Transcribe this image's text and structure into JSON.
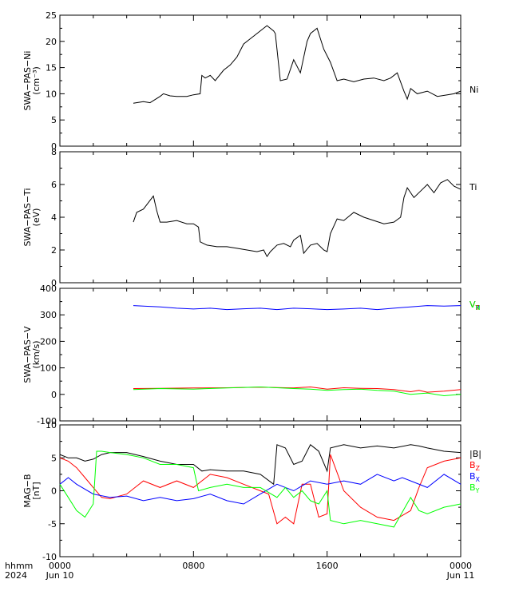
{
  "chart_data": [
    {
      "type": "line",
      "ylabel_lines": [
        "SWA−PAS−Ni",
        "(cm⁻³)"
      ],
      "ylim": [
        0,
        25
      ],
      "yticks": [
        0,
        5,
        10,
        15,
        20,
        25
      ],
      "xlim_hours": [
        0,
        24
      ],
      "series": [
        {
          "name": "Ni",
          "color": "#000000",
          "x": [
            4.4,
            5.0,
            5.4,
            6.0,
            6.2,
            6.6,
            7.0,
            7.6,
            8.0,
            8.4,
            8.5,
            8.7,
            9.0,
            9.3,
            9.8,
            10.2,
            10.6,
            11.0,
            11.4,
            11.8,
            12.2,
            12.4,
            12.8,
            12.9,
            13.2,
            13.6,
            14.0,
            14.4,
            14.8,
            15.0,
            15.4,
            15.8,
            16.2,
            16.6,
            17.0,
            17.6,
            18.2,
            18.8,
            19.4,
            19.8,
            20.2,
            20.6,
            20.8,
            21.0,
            21.4,
            22.0,
            22.6,
            23.2,
            23.6,
            24.0
          ],
          "y": [
            8.2,
            8.5,
            8.3,
            9.5,
            10.0,
            9.6,
            9.5,
            9.5,
            9.8,
            10.0,
            13.5,
            13.0,
            13.5,
            12.5,
            14.5,
            15.5,
            17.0,
            19.5,
            20.5,
            21.5,
            22.5,
            23.0,
            22.0,
            21.5,
            12.5,
            12.8,
            16.5,
            14.0,
            20.0,
            21.5,
            22.5,
            18.5,
            16.0,
            12.5,
            12.8,
            12.3,
            12.8,
            13.0,
            12.5,
            13.0,
            14.0,
            10.5,
            9.0,
            11.0,
            10.0,
            10.5,
            9.5,
            9.8,
            10.0,
            10.5
          ]
        }
      ],
      "legend": [
        {
          "label": "Ni",
          "color": "#000000"
        }
      ]
    },
    {
      "type": "line",
      "ylabel_lines": [
        "SWA−PAS−Ti",
        "(eV)"
      ],
      "ylim": [
        0,
        8
      ],
      "yticks": [
        0,
        2,
        4,
        6,
        8
      ],
      "xlim_hours": [
        0,
        24
      ],
      "series": [
        {
          "name": "Ti",
          "color": "#000000",
          "x": [
            4.4,
            4.6,
            5.0,
            5.3,
            5.6,
            5.8,
            6.0,
            6.4,
            7.0,
            7.6,
            8.0,
            8.3,
            8.4,
            8.8,
            9.4,
            10.0,
            10.6,
            11.2,
            11.8,
            12.2,
            12.4,
            12.6,
            13.0,
            13.4,
            13.8,
            14.0,
            14.4,
            14.6,
            15.0,
            15.4,
            15.8,
            16.0,
            16.2,
            16.6,
            17.0,
            17.6,
            18.2,
            18.8,
            19.4,
            20.0,
            20.4,
            20.6,
            20.8,
            21.2,
            21.6,
            22.0,
            22.4,
            22.8,
            23.2,
            23.6,
            24.0
          ],
          "y": [
            3.7,
            4.3,
            4.5,
            4.9,
            5.3,
            4.4,
            3.7,
            3.7,
            3.8,
            3.6,
            3.6,
            3.4,
            2.5,
            2.3,
            2.2,
            2.2,
            2.1,
            2.0,
            1.9,
            2.0,
            1.6,
            1.9,
            2.3,
            2.4,
            2.2,
            2.6,
            2.9,
            1.8,
            2.3,
            2.4,
            2.0,
            1.9,
            3.0,
            3.9,
            3.8,
            4.3,
            4.0,
            3.8,
            3.6,
            3.7,
            4.0,
            5.2,
            5.8,
            5.2,
            5.6,
            6.0,
            5.5,
            6.1,
            6.3,
            5.9,
            5.7
          ]
        }
      ],
      "legend": [
        {
          "label": "Ti",
          "color": "#000000"
        }
      ]
    },
    {
      "type": "line",
      "ylabel_lines": [
        "SWA−PAS−V",
        "(km/s)"
      ],
      "ylim": [
        -100,
        400
      ],
      "yticks": [
        -100,
        0,
        100,
        200,
        300,
        400
      ],
      "xlim_hours": [
        0,
        24
      ],
      "series": [
        {
          "name": "V_R",
          "color": "#0000ff",
          "x": [
            4.4,
            5.0,
            6.0,
            7.0,
            8.0,
            9.0,
            10.0,
            11.0,
            12.0,
            13.0,
            14.0,
            15.0,
            16.0,
            17.0,
            18.0,
            19.0,
            20.0,
            21.0,
            22.0,
            23.0,
            24.0
          ],
          "y": [
            335,
            333,
            330,
            325,
            322,
            325,
            320,
            323,
            325,
            320,
            325,
            323,
            320,
            322,
            325,
            320,
            325,
            330,
            335,
            333,
            335
          ]
        },
        {
          "name": "V_T",
          "color": "#ff0000",
          "x": [
            4.4,
            6.0,
            8.0,
            10.0,
            12.0,
            14.0,
            15.0,
            16.0,
            17.0,
            18.0,
            19.0,
            20.0,
            21.0,
            21.5,
            22.0,
            23.0,
            24.0
          ],
          "y": [
            22,
            23,
            24,
            25,
            27,
            24,
            28,
            20,
            25,
            23,
            22,
            18,
            10,
            15,
            8,
            12,
            18
          ]
        },
        {
          "name": "V_N",
          "color": "#00ff00",
          "x": [
            4.4,
            6.0,
            8.0,
            10.0,
            12.0,
            14.0,
            15.0,
            16.0,
            17.0,
            18.0,
            19.0,
            20.0,
            21.0,
            22.0,
            23.0,
            24.0
          ],
          "y": [
            18,
            22,
            20,
            24,
            28,
            22,
            20,
            15,
            18,
            20,
            15,
            12,
            0,
            5,
            -5,
            0
          ]
        }
      ],
      "legend": [
        {
          "label": "V",
          "sub": "R",
          "color": "#0000ff"
        },
        {
          "label": "V",
          "sub": "T",
          "color": "#ff0000"
        },
        {
          "label": "V",
          "sub": "N",
          "color": "#00ff00"
        }
      ]
    },
    {
      "type": "line",
      "ylabel_lines": [
        "MAG−B",
        "[nT]"
      ],
      "ylim": [
        -10,
        10
      ],
      "yticks": [
        -10,
        -5,
        0,
        5,
        10
      ],
      "xlim_hours": [
        0,
        24
      ],
      "series": [
        {
          "name": "|B|",
          "color": "#000000",
          "x": [
            0,
            0.5,
            1.0,
            1.5,
            2.0,
            2.5,
            3.0,
            4.0,
            5.0,
            6.0,
            7.0,
            8.0,
            8.5,
            9.0,
            10.0,
            11.0,
            12.0,
            12.8,
            13.0,
            13.5,
            14.0,
            14.5,
            15.0,
            15.5,
            16.0,
            16.2,
            17.0,
            18.0,
            19.0,
            20.0,
            21.0,
            21.5,
            22.0,
            23.0,
            24.0
          ],
          "y": [
            5.5,
            5.0,
            5.0,
            4.5,
            4.8,
            5.5,
            5.8,
            5.8,
            5.2,
            4.5,
            4.0,
            4.0,
            3.0,
            3.2,
            3.0,
            3.0,
            2.5,
            1.0,
            7.0,
            6.5,
            4.0,
            4.5,
            7.0,
            6.0,
            3.0,
            6.5,
            7.0,
            6.5,
            6.8,
            6.5,
            7.0,
            6.8,
            6.5,
            6.0,
            5.8
          ]
        },
        {
          "name": "B_Z",
          "color": "#ff0000",
          "x": [
            0,
            0.5,
            1.0,
            1.5,
            2.0,
            2.5,
            3.0,
            4.0,
            5.0,
            6.0,
            7.0,
            8.0,
            9.0,
            10.0,
            11.0,
            12.0,
            12.5,
            13.0,
            13.5,
            14.0,
            14.5,
            15.0,
            15.5,
            16.0,
            16.2,
            17.0,
            18.0,
            19.0,
            20.0,
            21.0,
            21.5,
            22.0,
            23.0,
            24.0
          ],
          "y": [
            5.0,
            4.5,
            3.5,
            2.0,
            0.5,
            -1.0,
            -1.2,
            -0.5,
            1.5,
            0.5,
            1.5,
            0.5,
            2.5,
            2.0,
            1.0,
            0,
            -0.5,
            -5.0,
            -4.0,
            -5.0,
            1.0,
            1.0,
            -4.0,
            -3.5,
            5.5,
            0,
            -2.5,
            -4.0,
            -4.5,
            -3.0,
            0.5,
            3.5,
            4.5,
            5.0
          ]
        },
        {
          "name": "B_X",
          "color": "#0000ff",
          "x": [
            0,
            0.5,
            1.0,
            2.0,
            3.0,
            4.0,
            5.0,
            6.0,
            7.0,
            8.0,
            9.0,
            10.0,
            11.0,
            12.0,
            13.0,
            14.0,
            15.0,
            16.0,
            17.0,
            18.0,
            19.0,
            20.0,
            20.5,
            21.0,
            22.0,
            23.0,
            24.0
          ],
          "y": [
            1.0,
            2.0,
            1.0,
            -0.5,
            -1.0,
            -0.8,
            -1.5,
            -1.0,
            -1.5,
            -1.2,
            -0.5,
            -1.5,
            -2.0,
            -0.5,
            1.0,
            0,
            1.5,
            1.0,
            1.5,
            1.0,
            2.5,
            1.5,
            2.0,
            1.5,
            0.5,
            2.5,
            1.0
          ]
        },
        {
          "name": "B_Y",
          "color": "#00ff00",
          "x": [
            0,
            0.5,
            1.0,
            1.5,
            2.0,
            2.2,
            2.5,
            3.0,
            4.0,
            5.0,
            6.0,
            7.0,
            8.0,
            8.3,
            9.0,
            10.0,
            11.0,
            12.0,
            13.0,
            13.5,
            14.0,
            14.5,
            15.0,
            15.5,
            16.0,
            16.2,
            17.0,
            18.0,
            19.0,
            20.0,
            21.0,
            21.5,
            22.0,
            23.0,
            24.0
          ],
          "y": [
            1.0,
            -1.0,
            -3.0,
            -4.0,
            -2.0,
            6.0,
            6.0,
            5.8,
            5.5,
            5.0,
            4.0,
            4.0,
            3.5,
            0,
            0.5,
            1.0,
            0.5,
            0.5,
            -1.0,
            0.5,
            -1.0,
            0,
            -1.5,
            -2.0,
            0,
            -4.5,
            -5.0,
            -4.5,
            -5.0,
            -5.5,
            -1.0,
            -3.0,
            -3.5,
            -2.5,
            -2.0
          ]
        }
      ],
      "legend": [
        {
          "label": "|B|",
          "color": "#000000"
        },
        {
          "label": "B",
          "sub": "Z",
          "color": "#ff0000"
        },
        {
          "label": "B",
          "sub": "X",
          "color": "#0000ff"
        },
        {
          "label": "B",
          "sub": "Y",
          "color": "#00ff00"
        }
      ]
    }
  ],
  "xaxis": {
    "ticks": [
      {
        "hour": 0,
        "label": "0000",
        "date": "Jun 10"
      },
      {
        "hour": 8,
        "label": "0800",
        "date": ""
      },
      {
        "hour": 16,
        "label": "1600",
        "date": ""
      },
      {
        "hour": 24,
        "label": "0000",
        "date": "Jun 11"
      }
    ],
    "row_label": "hhmm",
    "year_label": "2024"
  }
}
